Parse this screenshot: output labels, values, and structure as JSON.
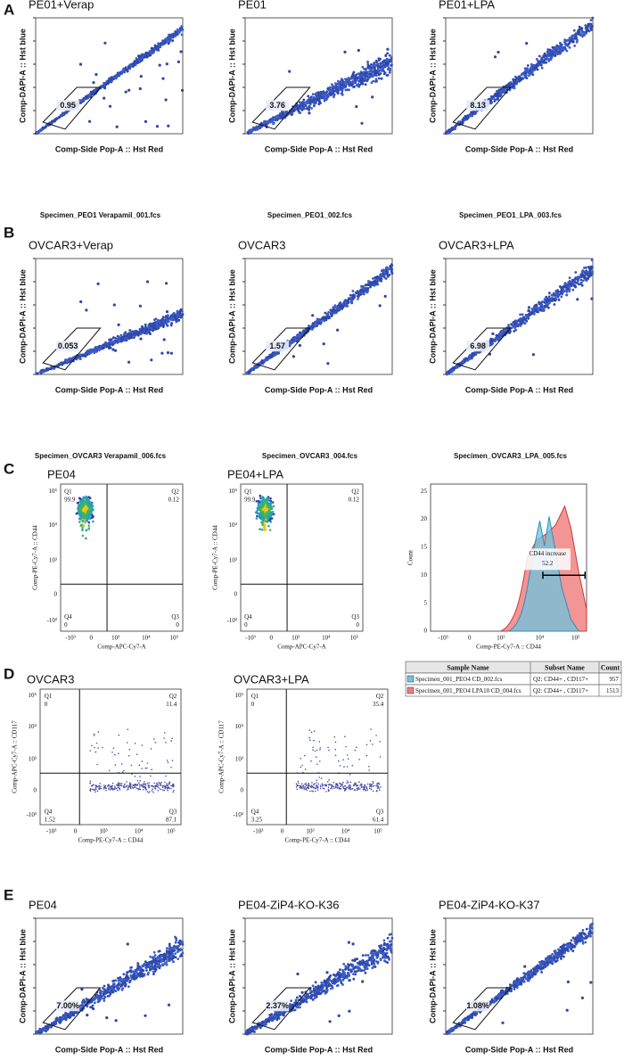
{
  "panels": [
    {
      "label": "A",
      "plots": [
        {
          "title": "PE01+Verap",
          "gate_value": "0.95",
          "x_label": "Comp-Side Pop-A :: Hst Red",
          "y_label": "Comp-DAPI-A :: Hst blue",
          "file": "Specimen_PEO1 Verapamil_001.fcs"
        },
        {
          "title": "PE01",
          "gate_value": "3.76",
          "x_label": "Comp-Side Pop-A :: Hst Red",
          "y_label": "Comp-DAPI-A :: Hst blue",
          "file": "Specimen_PEO1_002.fcs"
        },
        {
          "title": "PE01+LPA",
          "gate_value": "8.13",
          "x_label": "Comp-Side Pop-A :: Hst Red",
          "y_label": "Comp-DAPI-A :: Hst blue",
          "file": "Specimen_PEO1_LPA_003.fcs"
        }
      ]
    },
    {
      "label": "B",
      "plots": [
        {
          "title": "OVCAR3+Verap",
          "gate_value": "0.053",
          "x_label": "Comp-Side Pop-A :: Hst Red",
          "y_label": "Comp-DAPI-A :: Hst blue",
          "file": "Specimen_OVCAR3 Verapamil_006.fcs"
        },
        {
          "title": "OVCAR3",
          "gate_value": "1.57",
          "x_label": "Comp-Side Pop-A :: Hst Red",
          "y_label": "Comp-DAPI-A :: Hst blue",
          "file": "Specimen_OVCAR3_004.fcs"
        },
        {
          "title": "OVCAR3+LPA",
          "gate_value": "6.98",
          "x_label": "Comp-Side Pop-A :: Hst Red",
          "y_label": "Comp-DAPI-A :: Hst blue",
          "file": "Specimen_OVCAR3_LPA_005.fcs"
        }
      ]
    },
    {
      "label": "C",
      "y_ticks": [
        "10⁵",
        "10⁴",
        "10³",
        "0",
        "-10³"
      ],
      "x_ticks": [
        "-10³",
        "0",
        "10³",
        "10⁴",
        "10⁵"
      ],
      "plots": [
        {
          "title": "PE04",
          "x_label": "Comp-APC-Cy7-A",
          "y_label": "Comp-PE-Cy7-A :: CD44",
          "quadrants": [
            {
              "name": "Q1",
              "value": "99.9"
            },
            {
              "name": "Q2",
              "value": "0.12"
            },
            {
              "name": "Q3",
              "value": "0"
            },
            {
              "name": "Q4",
              "value": "0"
            }
          ]
        },
        {
          "title": "PE04+LPA",
          "x_label": "Comp-APC-Cy7-A",
          "y_label": "Comp-PE-Cy7-A :: CD44",
          "quadrants": [
            {
              "name": "Q1",
              "value": "99.9"
            },
            {
              "name": "Q2",
              "value": "0.12"
            },
            {
              "name": "Q3",
              "value": "0"
            },
            {
              "name": "Q4",
              "value": "0"
            }
          ]
        }
      ],
      "histogram": {
        "y_label": "Count",
        "x_label": "Comp-PE-Cy7-A :: CD44",
        "y_ticks": [
          "0",
          "5",
          "10",
          "15",
          "20",
          "25"
        ],
        "gate_name": "CD44 increase",
        "gate_value": "52.2"
      }
    },
    {
      "label": "D",
      "y_ticks": [
        "10⁵",
        "10⁴",
        "10³",
        "0",
        "-10³"
      ],
      "x_ticks": [
        "-10³",
        "0",
        "10³",
        "10⁴",
        "10⁵"
      ],
      "plots": [
        {
          "title": "OVCAR3",
          "x_label": "Comp-PE-Cy7-A :: CD44",
          "y_label": "Comp-APC-Cy7-A :: CD117",
          "quadrants": [
            {
              "name": "Q1",
              "value": "0"
            },
            {
              "name": "Q2",
              "value": "11.4"
            },
            {
              "name": "Q3",
              "value": "87.1"
            },
            {
              "name": "Q4",
              "value": "1.52"
            }
          ]
        },
        {
          "title": "OVCAR3+LPA",
          "x_label": "Comp-PE-Cy7-A :: CD44",
          "y_label": "Comp-APC-Cy7-A :: CD117",
          "quadrants": [
            {
              "name": "Q1",
              "value": "0"
            },
            {
              "name": "Q2",
              "value": "35.4"
            },
            {
              "name": "Q3",
              "value": "61.4"
            },
            {
              "name": "Q4",
              "value": "3.25"
            }
          ]
        }
      ],
      "table": {
        "header": [
          "Sample Name",
          "Subset Name",
          "Count"
        ],
        "rows": [
          [
            "Specimen_001_PEO4 CD_002.fcs",
            "Q2: CD44+ , CD117+",
            "957"
          ],
          [
            "Specimen_001_PEO4 LPA10 CD_004.fcs",
            "Q2: CD44+ , CD117+",
            "1513"
          ]
        ]
      }
    },
    {
      "label": "E",
      "plots": [
        {
          "title": "PE04",
          "gate_value": "7.00%",
          "x_label": "Comp-Side Pop-A :: Hst Red",
          "y_label": "Comp-DAPI-A :: Hst blue"
        },
        {
          "title": "PE04-ZiP4-KO-K36",
          "gate_value": "2.37%",
          "x_label": "Comp-Side Pop-A :: Hst Red",
          "y_label": "Comp-DAPI-A :: Hst blue"
        },
        {
          "title": "PE04-ZiP4-KO-K37",
          "gate_value": "1.08%",
          "x_label": "Comp-Side Pop-A :: Hst Red",
          "y_label": "Comp-DAPI-A :: Hst blue"
        }
      ]
    }
  ]
}
